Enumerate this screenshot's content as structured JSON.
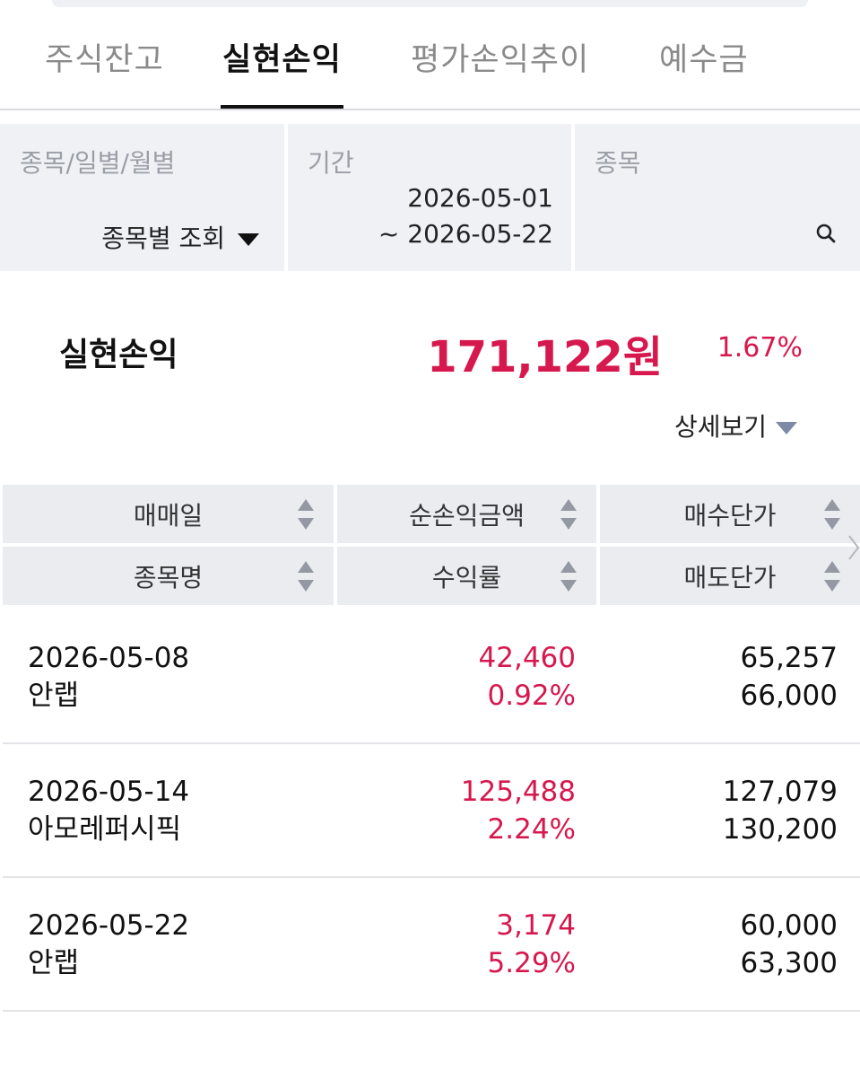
{
  "tabs": [
    "주식잔고",
    "실현손익",
    "평가손익추이",
    "예수금"
  ],
  "filters": {
    "type_label": "종목/일별/월별",
    "type_value": "종목별 조회",
    "period_label": "기간",
    "period_start": "2026-05-01",
    "period_end": "~ 2026-05-22",
    "stock_label": "종목"
  },
  "summary": {
    "label": "실현손익",
    "amount": "171,122원",
    "rate": "1.67%",
    "detail_label": "상세보기"
  },
  "table": {
    "headers_top": [
      "매매일",
      "순손익금액",
      "매수단가"
    ],
    "headers_bottom": [
      "종목명",
      "수익률",
      "매도단가"
    ],
    "rows": [
      {
        "date": "2026-05-08",
        "name": "안랩",
        "profit": "42,460",
        "rate": "0.92%",
        "buy_price": "65,257",
        "sell_price": "66,000"
      },
      {
        "date": "2026-05-14",
        "name": "아모레퍼시픽",
        "profit": "125,488",
        "rate": "2.24%",
        "buy_price": "127,079",
        "sell_price": "130,200"
      },
      {
        "date": "2026-05-22",
        "name": "안랩",
        "profit": "3,174",
        "rate": "5.29%",
        "buy_price": "60,000",
        "sell_price": "63,300"
      }
    ]
  },
  "colors": {
    "profit": "#d6184e",
    "header_bg": "#eaecf0",
    "filter_bg": "#eff1f5"
  },
  "icons": [
    "search-icon",
    "sort-icon",
    "caret-down-icon",
    "chevron-right-icon"
  ]
}
